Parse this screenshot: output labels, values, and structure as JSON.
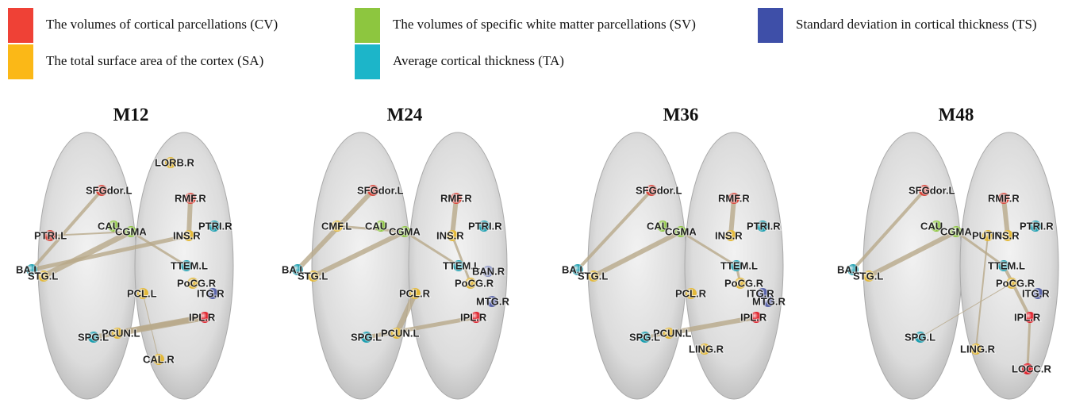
{
  "legend": [
    {
      "label": "The volumes of cortical parcellations (CV)",
      "color": "#ef4136"
    },
    {
      "label": "The total surface area of the cortex (SA)",
      "color": "#fbb817"
    },
    {
      "label": "The volumes of specific white matter parcellations (SV)",
      "color": "#8dc63f"
    },
    {
      "label": "Average cortical thickness (TA)",
      "color": "#1cb5c9"
    },
    {
      "label": "Standard deviation in cortical thickness (TS)",
      "color": "#3e4fa8"
    }
  ],
  "panels": [
    {
      "title": "M12",
      "nodes": [
        {
          "label": "SFGdor.L",
          "color": "#d9473d"
        },
        {
          "label": "LORB.R",
          "color": "#e3b93a"
        },
        {
          "label": "RMF.R",
          "color": "#d9473d"
        },
        {
          "label": "CAU",
          "color": "#8dc63f"
        },
        {
          "label": "CGMA",
          "color": "#8dc63f"
        },
        {
          "label": "PTRI.L",
          "color": "#d9473d"
        },
        {
          "label": "INS.R",
          "color": "#e3b93a"
        },
        {
          "label": "PTRI.R",
          "color": "#1e9fb0"
        },
        {
          "label": "BA.L",
          "color": "#1e9fb0"
        },
        {
          "label": "STG.L",
          "color": "#e3b93a"
        },
        {
          "label": "TTEM.L",
          "color": "#1e9fb0"
        },
        {
          "label": "PoCG.R",
          "color": "#e3b93a"
        },
        {
          "label": "ITG.R",
          "color": "#5a64a8"
        },
        {
          "label": "PCL.L",
          "color": "#e3b93a"
        },
        {
          "label": "IPL.R",
          "color": "#e0202a"
        },
        {
          "label": "PCUN.L",
          "color": "#e3b93a"
        },
        {
          "label": "SPG.L",
          "color": "#1e9fb0"
        },
        {
          "label": "CAL.R",
          "color": "#e3b93a"
        }
      ]
    },
    {
      "title": "M24",
      "nodes": [
        {
          "label": "SFGdor.L",
          "color": "#d9473d"
        },
        {
          "label": "RMF.R",
          "color": "#d9473d"
        },
        {
          "label": "CMF.L",
          "color": "#e3b93a"
        },
        {
          "label": "CAU",
          "color": "#8dc63f"
        },
        {
          "label": "CGMA",
          "color": "#8dc63f"
        },
        {
          "label": "INS.R",
          "color": "#e3b93a"
        },
        {
          "label": "PTRI.R",
          "color": "#1e9fb0"
        },
        {
          "label": "BA.L",
          "color": "#1e9fb0"
        },
        {
          "label": "STG.L",
          "color": "#e3b93a"
        },
        {
          "label": "TTEM.L",
          "color": "#1e9fb0"
        },
        {
          "label": "BAN.R",
          "color": "#8a93c4"
        },
        {
          "label": "PoCG.R",
          "color": "#e3b93a"
        },
        {
          "label": "PCL.R",
          "color": "#e3b93a"
        },
        {
          "label": "MTG.R",
          "color": "#5a64a8"
        },
        {
          "label": "IPL.R",
          "color": "#e0202a"
        },
        {
          "label": "PCUN.L",
          "color": "#e3b93a"
        },
        {
          "label": "SPG.L",
          "color": "#1e9fb0"
        }
      ]
    },
    {
      "title": "M36",
      "nodes": [
        {
          "label": "SFGdor.L",
          "color": "#d9473d"
        },
        {
          "label": "RMF.R",
          "color": "#d9473d"
        },
        {
          "label": "CAU",
          "color": "#8dc63f"
        },
        {
          "label": "CGMA",
          "color": "#8dc63f"
        },
        {
          "label": "INS.R",
          "color": "#e3b93a"
        },
        {
          "label": "PTRI.R",
          "color": "#1e9fb0"
        },
        {
          "label": "BA.L",
          "color": "#1e9fb0"
        },
        {
          "label": "STG.L",
          "color": "#e3b93a"
        },
        {
          "label": "TTEM.L",
          "color": "#1e9fb0"
        },
        {
          "label": "PoCG.R",
          "color": "#e3b93a"
        },
        {
          "label": "PCL.R",
          "color": "#e3b93a"
        },
        {
          "label": "ITG.R",
          "color": "#5a64a8"
        },
        {
          "label": "MTG.R",
          "color": "#5a64a8"
        },
        {
          "label": "IPL.R",
          "color": "#e0202a"
        },
        {
          "label": "PCUN.L",
          "color": "#e3b93a"
        },
        {
          "label": "SPG.L",
          "color": "#1e9fb0"
        },
        {
          "label": "LING.R",
          "color": "#e3b93a"
        }
      ]
    },
    {
      "title": "M48",
      "nodes": [
        {
          "label": "SFGdor.L",
          "color": "#d9473d"
        },
        {
          "label": "RMF.R",
          "color": "#d9473d"
        },
        {
          "label": "CAU",
          "color": "#8dc63f"
        },
        {
          "label": "CGMA",
          "color": "#8dc63f"
        },
        {
          "label": "PUT.R",
          "color": "#e3b93a"
        },
        {
          "label": "INS.R",
          "color": "#e3b93a"
        },
        {
          "label": "PTRI.R",
          "color": "#1e9fb0"
        },
        {
          "label": "BA.L",
          "color": "#1e9fb0"
        },
        {
          "label": "STG.L",
          "color": "#e3b93a"
        },
        {
          "label": "TTEM.L",
          "color": "#1e9fb0"
        },
        {
          "label": "PoCG.R",
          "color": "#e3b93a"
        },
        {
          "label": "ITG.R",
          "color": "#5a64a8"
        },
        {
          "label": "IPL.R",
          "color": "#e0202a"
        },
        {
          "label": "SPG.L",
          "color": "#1e9fb0"
        },
        {
          "label": "LING.R",
          "color": "#e3b93a"
        },
        {
          "label": "LOCC.R",
          "color": "#e0202a"
        }
      ]
    }
  ]
}
